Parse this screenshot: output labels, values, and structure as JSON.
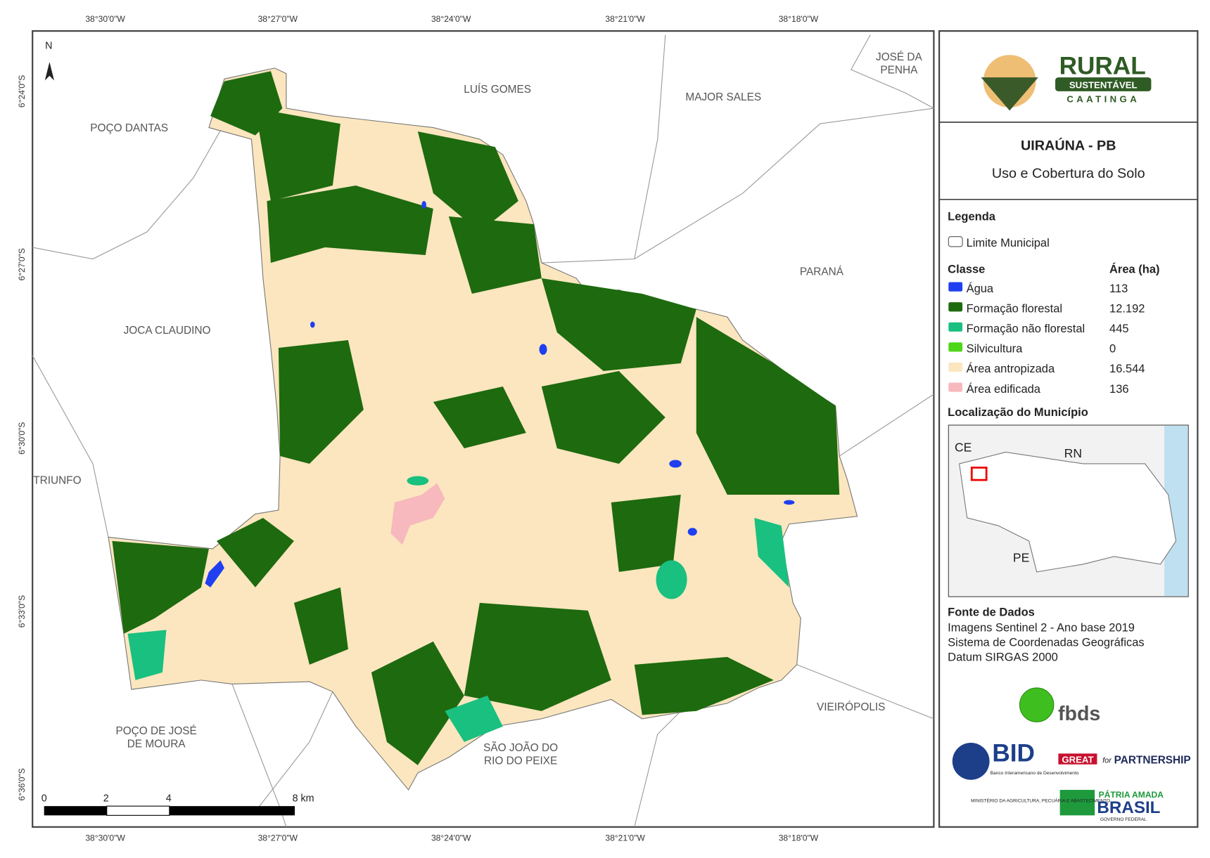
{
  "map": {
    "north": "N",
    "top_coords": [
      "38°30'0\"W",
      "38°27'0\"W",
      "38°24'0\"W",
      "38°21'0\"W",
      "38°18'0\"W"
    ],
    "bottom_coords": [
      "38°30'0\"W",
      "38°27'0\"W",
      "38°24'0\"W",
      "38°21'0\"W",
      "38°18'0\"W"
    ],
    "left_coords": [
      "6°24'0\"S",
      "6°27'0\"S",
      "6°30'0\"S",
      "6°33'0\"S",
      "6°36'0\"S"
    ],
    "places": [
      "LUÍS GOMES",
      "MAJOR SALES",
      "JOSÉ DA\nPENHA",
      "POÇO DANTAS",
      "PARANÁ",
      "JOCA CLAUDINO",
      "TRIUNFO",
      "POÇO DE JOSÉ\nDE MOURA",
      "SÃO JOÃO DO\nRIO DO PEIXE",
      "VIEIRÓPOLIS"
    ],
    "scale": [
      "0",
      "2",
      "4",
      "8 km"
    ]
  },
  "panel": {
    "logo": {
      "name": "RURAL",
      "sub": "SUSTENTÁVEL",
      "region": "CAATINGA"
    },
    "title": "UIRAÚNA - PB",
    "subtitle": "Uso e Cobertura do Solo",
    "legend_title": "Legenda",
    "boundary": "Limite Municipal",
    "class_header": "Classe",
    "area_header": "Área (ha)",
    "classes": [
      {
        "name": "Água",
        "color": "#1f3ff0",
        "area": "113"
      },
      {
        "name": "Formação florestal",
        "color": "#1e6a0f",
        "area": "12.192"
      },
      {
        "name": "Formação não florestal",
        "color": "#19c07f",
        "area": "445"
      },
      {
        "name": "Silvicultura",
        "color": "#4fd61a",
        "area": "0"
      },
      {
        "name": "Área antropizada",
        "color": "#fbe6bf",
        "area": "16.544"
      },
      {
        "name": "Área edificada",
        "color": "#f7b9bd",
        "area": "136"
      }
    ],
    "location_title": "Localização do Município",
    "inset_labels": [
      "CE",
      "RN",
      "PE"
    ],
    "source_title": "Fonte de Dados",
    "source_lines": [
      "Imagens Sentinel 2 - Ano base 2019",
      "Sistema de Coordenadas Geográficas",
      "Datum SIRGAS 2000"
    ],
    "logos": {
      "fbds": "fbds",
      "bid": "BID",
      "bid_sub": "Banco Interamericano de Desenvolvimento",
      "great": "GREAT",
      "for": "for",
      "partnership": "PARTNERSHIP",
      "ministry": "MINISTÉRIO DA AGRICULTURA, PECUÁRIA E ABASTECIMENTO",
      "patria": "PÁTRIA AMADA",
      "brasil": "BRASIL",
      "gov": "GOVERNO FEDERAL"
    }
  }
}
